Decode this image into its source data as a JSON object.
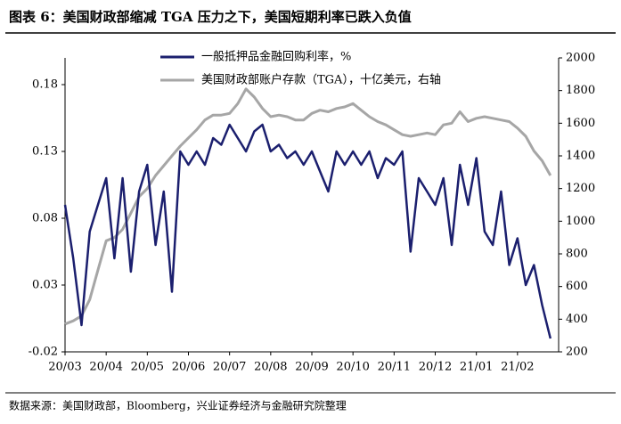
{
  "chart_data": {
    "type": "line",
    "title": "图表 6：美国财政部缩减 TGA 压力之下，美国短期利率已跌入负值",
    "source": "数据来源：美国财政部，Bloomberg，兴业证券经济与金融研究院整理",
    "categories": [
      "20/03",
      null,
      null,
      null,
      null,
      "20/04",
      null,
      null,
      null,
      null,
      "20/05",
      null,
      null,
      null,
      null,
      "20/06",
      null,
      null,
      null,
      null,
      "20/07",
      null,
      null,
      null,
      null,
      "20/08",
      null,
      null,
      null,
      null,
      "20/09",
      null,
      null,
      null,
      null,
      "20/10",
      null,
      null,
      null,
      null,
      "20/11",
      null,
      null,
      null,
      null,
      "20/12",
      null,
      null,
      null,
      null,
      "21/01",
      null,
      null,
      null,
      null,
      "21/02",
      null,
      null,
      null,
      null
    ],
    "series": [
      {
        "name": "一般抵押品金融回购利率，%",
        "color": "#1b1f6e",
        "axis": "y",
        "values": [
          0.09,
          0.05,
          0.0,
          0.07,
          0.09,
          0.11,
          0.05,
          0.11,
          0.04,
          0.1,
          0.12,
          0.06,
          0.1,
          0.025,
          0.13,
          0.12,
          0.13,
          0.12,
          0.14,
          0.135,
          0.15,
          0.14,
          0.13,
          0.145,
          0.15,
          0.13,
          0.135,
          0.125,
          0.13,
          0.12,
          0.13,
          0.115,
          0.1,
          0.13,
          0.12,
          0.13,
          0.12,
          0.13,
          0.11,
          0.125,
          0.12,
          0.13,
          0.055,
          0.11,
          0.1,
          0.09,
          0.11,
          0.06,
          0.12,
          0.09,
          0.125,
          0.07,
          0.06,
          0.1,
          0.045,
          0.065,
          0.03,
          0.045,
          0.015,
          -0.01
        ]
      },
      {
        "name": "美国财政部账户存款（TGA），十亿美元，右轴",
        "color": "#a6a6a6",
        "axis": "y2",
        "values": [
          370,
          390,
          420,
          520,
          700,
          880,
          900,
          950,
          1050,
          1150,
          1200,
          1280,
          1340,
          1400,
          1460,
          1510,
          1560,
          1620,
          1650,
          1650,
          1660,
          1720,
          1810,
          1760,
          1690,
          1640,
          1650,
          1640,
          1620,
          1620,
          1660,
          1680,
          1670,
          1690,
          1700,
          1720,
          1680,
          1640,
          1610,
          1590,
          1560,
          1530,
          1520,
          1530,
          1540,
          1530,
          1590,
          1600,
          1670,
          1610,
          1630,
          1640,
          1630,
          1620,
          1610,
          1570,
          1520,
          1430,
          1370,
          1280
        ]
      }
    ],
    "ylim": [
      -0.02,
      0.2
    ],
    "yticks": [
      -0.02,
      0.03,
      0.08,
      0.13,
      0.18
    ],
    "y2lim": [
      200,
      2000
    ],
    "y2ticks": [
      200,
      400,
      600,
      800,
      1000,
      1200,
      1400,
      1600,
      1800,
      2000
    ],
    "legend": "upper-left",
    "grid": false
  }
}
